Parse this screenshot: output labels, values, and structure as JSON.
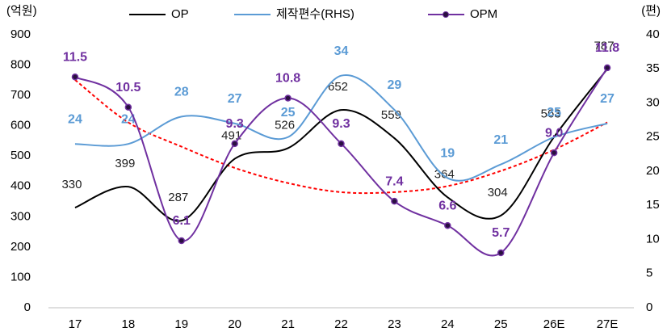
{
  "chart_data": {
    "type": "line",
    "categories": [
      "17",
      "18",
      "19",
      "20",
      "21",
      "22",
      "23",
      "24",
      "25",
      "26E",
      "27E"
    ],
    "ylabel": "(억원)",
    "y2label": "(편)",
    "ylim": [
      0,
      900
    ],
    "yticks": [
      0,
      100,
      200,
      300,
      400,
      500,
      600,
      700,
      800,
      900
    ],
    "y2lim": [
      0,
      40
    ],
    "y2ticks": [
      0,
      5,
      10,
      15,
      20,
      25,
      30,
      35,
      40
    ],
    "y3lim": [
      3.89,
      12.89
    ],
    "legend": "top",
    "series": [
      {
        "name": "OP",
        "color": "#000000",
        "axis": "y",
        "values": [
          330,
          399,
          287,
          491,
          526,
          652,
          559,
          364,
          304,
          563,
          787
        ]
      },
      {
        "name": "제작편수(RHS)",
        "color": "#5b9bd5",
        "axis": "y2",
        "values": [
          24,
          24,
          28,
          27,
          25,
          34,
          29,
          19,
          21,
          25,
          27
        ]
      },
      {
        "name": "OPM",
        "color": "#7030a0",
        "axis": "y3",
        "markers": true,
        "values": [
          11.5,
          10.5,
          6.1,
          9.3,
          10.8,
          9.3,
          7.4,
          6.6,
          5.7,
          9.0,
          11.8
        ],
        "value_labels": [
          "11.5",
          "10.5",
          "6.1",
          "9.3",
          "10.8",
          "9.3",
          "7.4",
          "6.6",
          "5.7",
          "9.0",
          "11.8"
        ]
      }
    ],
    "trendline": {
      "color": "#ff0000",
      "axis": "y3",
      "values": [
        11.4,
        10.0,
        9.2,
        8.5,
        8.0,
        7.7,
        7.7,
        7.9,
        8.4,
        9.1,
        10.0
      ]
    }
  }
}
